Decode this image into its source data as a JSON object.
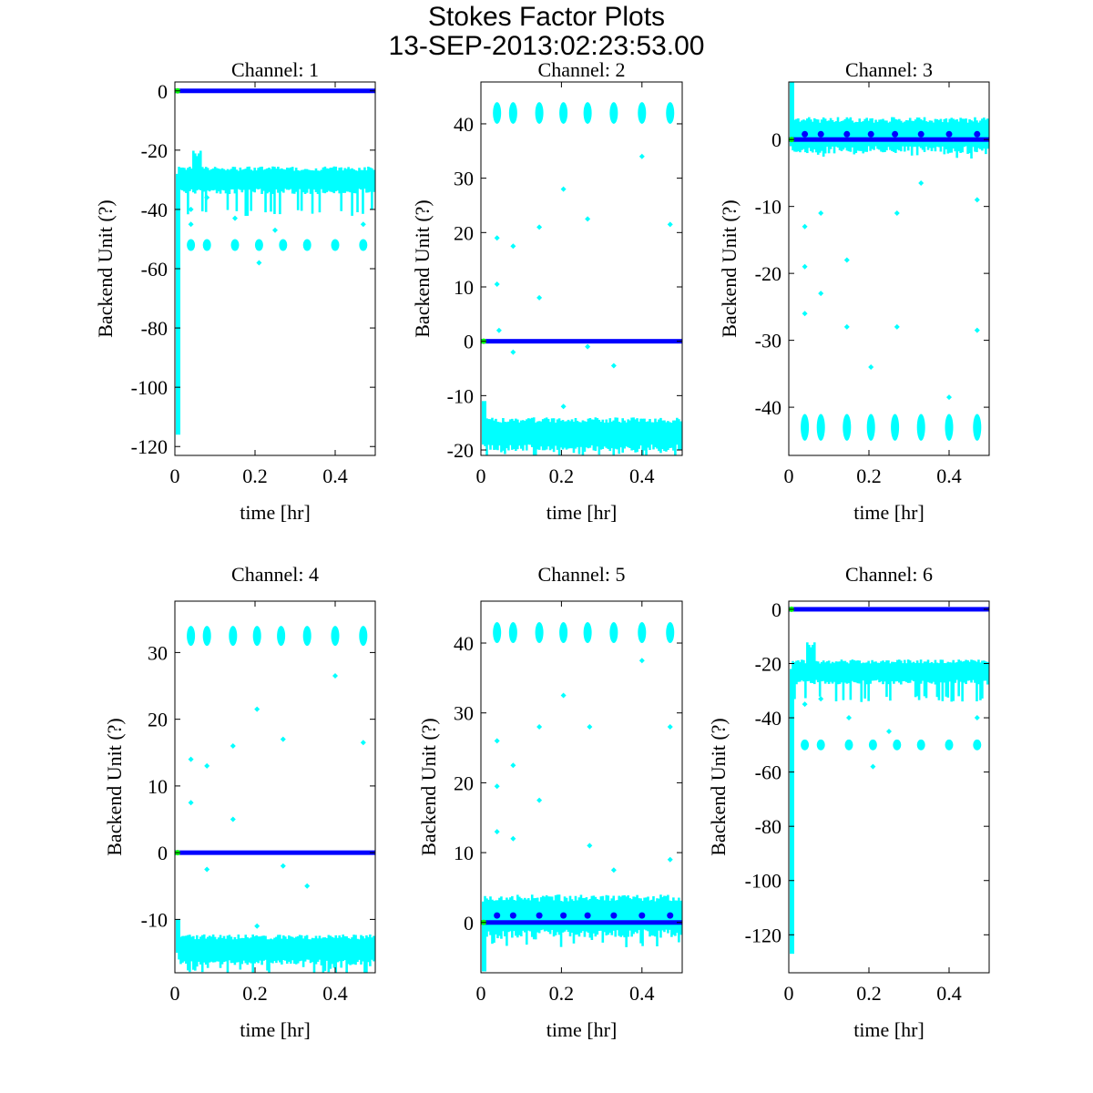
{
  "title": "Stokes Factor Plots",
  "subtitle": "13-SEP-2013:02:23:53.00",
  "colors": {
    "cyan": "#00ffff",
    "blue": "#0000ff",
    "green": "#00ff00",
    "axis": "#000000"
  },
  "chart_data": [
    {
      "type": "scatter",
      "title": "Channel: 1",
      "xlabel": "time [hr]",
      "ylabel": "Backend Unit (?)",
      "xlim": [
        0,
        0.5
      ],
      "ylim": [
        -123,
        3
      ],
      "xticks": [
        0,
        0.2,
        0.4
      ],
      "yticks": [
        0,
        -20,
        -40,
        -60,
        -80,
        -100,
        -120
      ],
      "blue_level": 0,
      "band": [
        -33,
        -27
      ],
      "band_dips": -40,
      "initial_spike": [
        -116,
        -28
      ],
      "peak": {
        "x": 0.055,
        "y": -22
      },
      "burst_x": [
        0.04,
        0.08,
        0.15,
        0.21,
        0.27,
        0.33,
        0.4,
        0.47
      ],
      "burst_y": [
        -54,
        -50
      ],
      "outliers": [
        [
          0.04,
          -40
        ],
        [
          0.04,
          -45
        ],
        [
          0.08,
          -36
        ],
        [
          0.15,
          -43
        ],
        [
          0.21,
          -58
        ],
        [
          0.25,
          -47
        ],
        [
          0.47,
          -45
        ]
      ]
    },
    {
      "type": "scatter",
      "title": "Channel: 2",
      "xlabel": "time [hr]",
      "ylabel": "Backend Unit (?)",
      "xlim": [
        0,
        0.5
      ],
      "ylim": [
        -21,
        47.7
      ],
      "xticks": [
        0,
        0.2,
        0.4
      ],
      "yticks": [
        40,
        30,
        20,
        10,
        0,
        -10,
        -20
      ],
      "blue_level": 0,
      "band": [
        -19,
        -15
      ],
      "band_dips": -20,
      "initial_spike": [
        -19,
        -11
      ],
      "burst_x": [
        0.04,
        0.08,
        0.145,
        0.205,
        0.265,
        0.33,
        0.4,
        0.47
      ],
      "burst_y": [
        40,
        44
      ],
      "outliers": [
        [
          0.04,
          19
        ],
        [
          0.04,
          10.5
        ],
        [
          0.045,
          2
        ],
        [
          0.08,
          17.5
        ],
        [
          0.145,
          21
        ],
        [
          0.145,
          8
        ],
        [
          0.205,
          28
        ],
        [
          0.265,
          22.5
        ],
        [
          0.4,
          34
        ],
        [
          0.47,
          21.5
        ],
        [
          0.08,
          -2
        ],
        [
          0.33,
          -4.5
        ],
        [
          0.205,
          -12
        ],
        [
          0.265,
          -1
        ]
      ]
    },
    {
      "type": "scatter",
      "title": "Channel: 3",
      "xlabel": "time [hr]",
      "ylabel": "Backend Unit (?)",
      "xlim": [
        0,
        0.5
      ],
      "ylim": [
        -47.2,
        8.6
      ],
      "xticks": [
        0,
        0.2,
        0.4
      ],
      "yticks": [
        0,
        -10,
        -20,
        -30,
        -40
      ],
      "blue_level": 0,
      "band": [
        -1,
        2.5
      ],
      "band_dips": -1.5,
      "initial_spike": [
        -1,
        8.6
      ],
      "burst_x": [
        0.04,
        0.08,
        0.145,
        0.205,
        0.265,
        0.33,
        0.4,
        0.47
      ],
      "burst_y": [
        -45,
        -41
      ],
      "blue_dots": 0.8,
      "outliers": [
        [
          0.04,
          -13
        ],
        [
          0.04,
          -19
        ],
        [
          0.04,
          -26
        ],
        [
          0.08,
          -11
        ],
        [
          0.08,
          -23
        ],
        [
          0.145,
          -18
        ],
        [
          0.145,
          -28
        ],
        [
          0.205,
          -34
        ],
        [
          0.27,
          -11
        ],
        [
          0.27,
          -28
        ],
        [
          0.33,
          -6.5
        ],
        [
          0.4,
          -38.5
        ],
        [
          0.47,
          -9
        ],
        [
          0.47,
          -28.5
        ]
      ]
    },
    {
      "type": "scatter",
      "title": "Channel: 4",
      "xlabel": "time [hr]",
      "ylabel": "Backend Unit (?)",
      "xlim": [
        0,
        0.5
      ],
      "ylim": [
        -18,
        37.7
      ],
      "xticks": [
        0,
        0.2,
        0.4
      ],
      "yticks": [
        30,
        20,
        10,
        0,
        -10
      ],
      "blue_level": 0,
      "band": [
        -16,
        -13
      ],
      "band_dips": -17,
      "initial_spike": [
        -15,
        -10
      ],
      "burst_x": [
        0.04,
        0.08,
        0.145,
        0.205,
        0.265,
        0.33,
        0.4,
        0.47
      ],
      "burst_y": [
        31,
        34
      ],
      "outliers": [
        [
          0.04,
          14
        ],
        [
          0.04,
          7.5
        ],
        [
          0.08,
          13
        ],
        [
          0.145,
          16
        ],
        [
          0.145,
          5
        ],
        [
          0.205,
          21.5
        ],
        [
          0.27,
          17
        ],
        [
          0.4,
          26.5
        ],
        [
          0.47,
          16.5
        ],
        [
          0.08,
          -2.5
        ],
        [
          0.27,
          -2
        ],
        [
          0.33,
          -5
        ],
        [
          0.205,
          -11
        ]
      ]
    },
    {
      "type": "scatter",
      "title": "Channel: 5",
      "xlabel": "time [hr]",
      "ylabel": "Backend Unit (?)",
      "xlim": [
        0,
        0.5
      ],
      "ylim": [
        -7.2,
        46
      ],
      "xticks": [
        0,
        0.2,
        0.4
      ],
      "yticks": [
        40,
        30,
        20,
        10,
        0
      ],
      "blue_level": 0,
      "band": [
        -1,
        3
      ],
      "band_dips": -2,
      "initial_spike": [
        -7,
        3
      ],
      "burst_x": [
        0.04,
        0.08,
        0.145,
        0.205,
        0.265,
        0.33,
        0.4,
        0.47
      ],
      "burst_y": [
        40,
        43
      ],
      "blue_dots": 1,
      "outliers": [
        [
          0.04,
          26
        ],
        [
          0.04,
          19.5
        ],
        [
          0.04,
          13
        ],
        [
          0.08,
          22.5
        ],
        [
          0.08,
          12
        ],
        [
          0.145,
          28
        ],
        [
          0.145,
          17.5
        ],
        [
          0.205,
          32.5
        ],
        [
          0.27,
          28
        ],
        [
          0.27,
          11
        ],
        [
          0.33,
          7.5
        ],
        [
          0.4,
          37.5
        ],
        [
          0.47,
          28
        ],
        [
          0.47,
          9
        ]
      ]
    },
    {
      "type": "scatter",
      "title": "Channel: 6",
      "xlabel": "time [hr]",
      "ylabel": "Backend Unit (?)",
      "xlim": [
        0,
        0.5
      ],
      "ylim": [
        -134,
        3
      ],
      "xticks": [
        0,
        0.2,
        0.4
      ],
      "yticks": [
        0,
        -20,
        -40,
        -60,
        -80,
        -100,
        -120
      ],
      "blue_level": 0,
      "band": [
        -26,
        -20
      ],
      "band_dips": -32,
      "initial_spike": [
        -127,
        -22
      ],
      "peak": {
        "x": 0.055,
        "y": -14
      },
      "burst_x": [
        0.04,
        0.08,
        0.15,
        0.21,
        0.27,
        0.33,
        0.4,
        0.47
      ],
      "burst_y": [
        -52,
        -48
      ],
      "outliers": [
        [
          0.04,
          -35
        ],
        [
          0.08,
          -33
        ],
        [
          0.15,
          -40
        ],
        [
          0.21,
          -58
        ],
        [
          0.25,
          -45
        ],
        [
          0.47,
          -40
        ]
      ]
    }
  ]
}
